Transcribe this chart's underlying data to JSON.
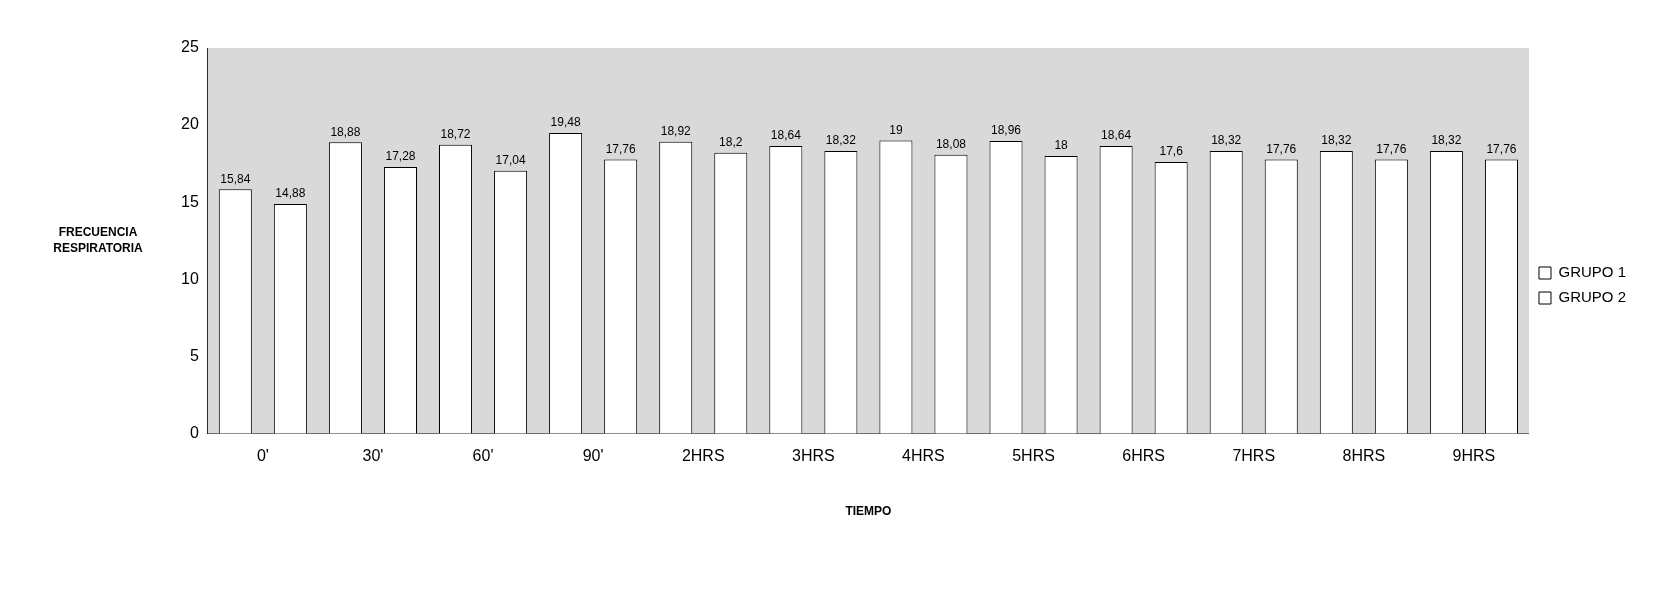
{
  "chart_data": {
    "type": "bar",
    "xlabel": "TIEMPO",
    "ylabel": "FRECUENCIA RESPIRATORIA",
    "categories": [
      "0'",
      "30'",
      "60'",
      "90'",
      "2HRS",
      "3HRS",
      "4HRS",
      "5HRS",
      "6HRS",
      "7HRS",
      "8HRS",
      "9HRS"
    ],
    "series": [
      {
        "name": "GRUPO 1",
        "color": "#ffffff",
        "values": [
          15.84,
          18.88,
          18.72,
          19.48,
          18.92,
          18.64,
          19,
          18.96,
          18.64,
          18.32,
          18.32,
          18.32
        ],
        "value_labels": [
          "15,84",
          "18,88",
          "18,72",
          "19,48",
          "18,92",
          "18,64",
          "19",
          "18,96",
          "18,64",
          "18,32",
          "18,32",
          "18,32"
        ]
      },
      {
        "name": "GRUPO 2",
        "color": "#ffffff",
        "values": [
          14.88,
          17.28,
          17.04,
          17.76,
          18.2,
          18.32,
          18.08,
          18,
          17.6,
          17.76,
          17.76,
          17.76
        ],
        "value_labels": [
          "14,88",
          "17,28",
          "17,04",
          "17,76",
          "18,2",
          "18,32",
          "18,08",
          "18",
          "17,6",
          "17,76",
          "17,76",
          "17,76"
        ]
      }
    ],
    "ylim": [
      0,
      25
    ],
    "yticks": [
      0,
      5,
      10,
      15,
      20,
      25
    ],
    "grid": false,
    "legend": "right"
  }
}
